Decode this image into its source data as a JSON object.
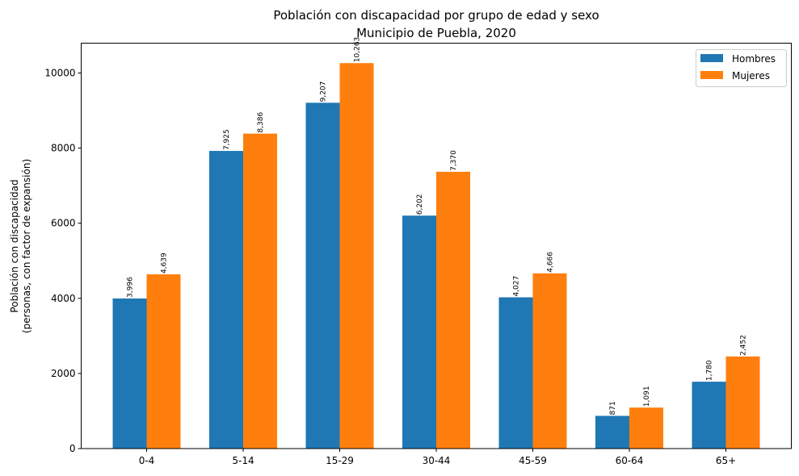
{
  "chart_data": {
    "type": "bar",
    "title": "Población con discapacidad por grupo de edad y sexo",
    "subtitle": "Municipio de Puebla, 2020",
    "xlabel": "",
    "ylabel_line1": "Población con discapacidad",
    "ylabel_line2": "(personas, con factor de expansión)",
    "ylim": [
      0,
      10794
    ],
    "yticks": [
      0,
      2000,
      4000,
      6000,
      8000,
      10000
    ],
    "ytick_labels": [
      "0",
      "2000",
      "4000",
      "6000",
      "8000",
      "10000"
    ],
    "grid": false,
    "legend_position": "top-right",
    "categories": [
      "0-4",
      "5-14",
      "15-29",
      "30-44",
      "45-59",
      "60-64",
      "65+"
    ],
    "series": [
      {
        "name": "Hombres",
        "color": "#1f77b4",
        "values": [
          3996,
          7925,
          9207,
          6202,
          4027,
          871,
          1780
        ],
        "labels": [
          "3,996",
          "7,925",
          "9,207",
          "6,202",
          "4,027",
          "871",
          "1,780"
        ]
      },
      {
        "name": "Mujeres",
        "color": "#ff7f0e",
        "values": [
          4639,
          8386,
          10263,
          7370,
          4666,
          1091,
          2452
        ],
        "labels": [
          "4,639",
          "8,386",
          "10,263",
          "7,370",
          "4,666",
          "1,091",
          "2,452"
        ]
      }
    ]
  }
}
